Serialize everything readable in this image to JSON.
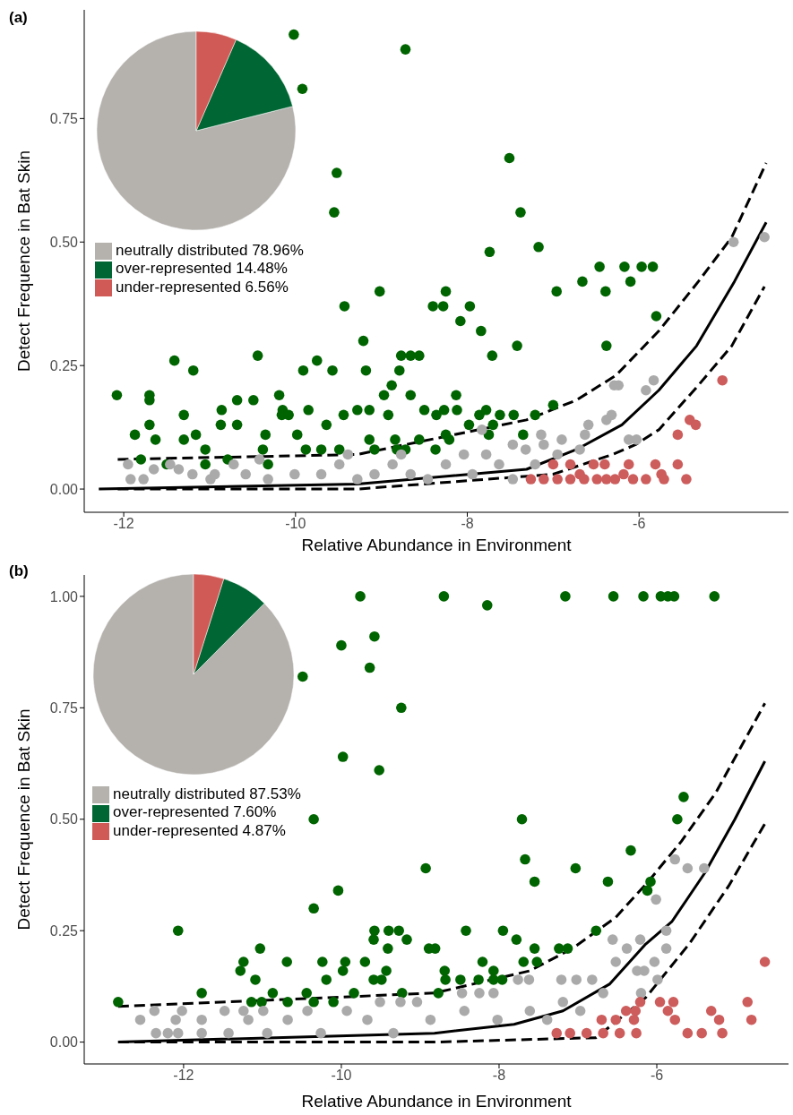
{
  "chart_data": [
    {
      "type": "scatter",
      "title": "(a)",
      "xlabel": "Relative Abundance in Environment",
      "ylabel": "Detect Frequence in Bat Skin",
      "grid": false,
      "xlim": [
        -12.46,
        -4.26
      ],
      "xticks": [
        -12,
        -10,
        -8,
        -6
      ],
      "ylim": [
        -0.047,
        0.97
      ],
      "yticks": [
        {
          "value": 0,
          "label": "0.00"
        },
        {
          "value": 0.25,
          "label": "0.25"
        },
        {
          "value": 0.5,
          "label": "0.50"
        },
        {
          "value": 0.75,
          "label": "0.75"
        }
      ],
      "series": [
        {
          "type": "scatter",
          "color": "#006400",
          "marker": "circle",
          "x": [
            -10.02,
            -8.72,
            -9.92,
            -9.52,
            -9.55,
            -7.51,
            -7.38,
            -7.17,
            -7.74,
            -6.46,
            -6.17,
            -5.97,
            -5.84,
            -6.66,
            -6.96,
            -6.1,
            -6.39,
            -5.8,
            -9.02,
            -8.25,
            -8.4,
            -8.28,
            -7.97,
            -8.08,
            -9.43,
            -9.21,
            -7.84,
            -7.42,
            -7.71,
            -6.38,
            -11.41,
            -11.19,
            -10.44,
            -9.75,
            -9.91,
            -8.66,
            -8.77,
            -8.56,
            -8.79,
            -9.18,
            -9.57,
            -12.08,
            -11.7,
            -11.7,
            -11.7,
            -11.87,
            -11.63,
            -11.3,
            -11.16,
            -11.3,
            -10.86,
            -10.68,
            -10.49,
            -10.87,
            -10.68,
            -10.19,
            -10.15,
            -10.16,
            -10.08,
            -10.35,
            -9.98,
            -10.38,
            -9.64,
            -9.85,
            -9.44,
            -9.28,
            -9.14,
            -8.92,
            -8.97,
            -8.88,
            -8.66,
            -8.5,
            -8.36,
            -8.27,
            -8.13,
            -8.12,
            -7.98,
            -7.86,
            -7.78,
            -7.7,
            -7.62,
            -7.75,
            -7.46,
            -7.35,
            -11.8,
            -11.5,
            -11.05,
            -11.05,
            -10.79,
            -10.32,
            -9.88,
            -9.7,
            -9.49,
            -9.14,
            -9.08,
            -8.84,
            -8.82,
            -8.72,
            -8.56,
            -8.37,
            -8.25,
            -8.21,
            -7.21,
            -7.0
          ],
          "values": [
            0.92,
            0.89,
            0.81,
            0.64,
            0.56,
            0.67,
            0.56,
            0.49,
            0.48,
            0.45,
            0.45,
            0.45,
            0.45,
            0.42,
            0.4,
            0.42,
            0.4,
            0.35,
            0.4,
            0.4,
            0.37,
            0.37,
            0.37,
            0.34,
            0.37,
            0.3,
            0.32,
            0.29,
            0.27,
            0.29,
            0.26,
            0.24,
            0.27,
            0.26,
            0.24,
            0.27,
            0.27,
            0.27,
            0.24,
            0.24,
            0.24,
            0.19,
            0.19,
            0.18,
            0.13,
            0.11,
            0.1,
            0.15,
            0.11,
            0.1,
            0.16,
            0.18,
            0.18,
            0.13,
            0.13,
            0.19,
            0.16,
            0.15,
            0.15,
            0.11,
            0.11,
            0.08,
            0.13,
            0.16,
            0.15,
            0.16,
            0.16,
            0.15,
            0.19,
            0.21,
            0.19,
            0.16,
            0.15,
            0.16,
            0.19,
            0.16,
            0.13,
            0.15,
            0.16,
            0.13,
            0.15,
            0.11,
            0.15,
            0.11,
            0.06,
            0.05,
            0.08,
            0.05,
            0.06,
            0.05,
            0.08,
            0.08,
            0.08,
            0.1,
            0.08,
            0.1,
            0.08,
            0.08,
            0.1,
            0.08,
            0.11,
            0.1,
            0.15,
            0.17
          ]
        },
        {
          "type": "scatter",
          "color": "#aaaaaa",
          "marker": "circle",
          "x": [
            -11.95,
            -11.92,
            -11.77,
            -11.65,
            -11.46,
            -11.36,
            -11.2,
            -10.99,
            -10.94,
            -10.72,
            -10.58,
            -10.32,
            -10.01,
            -9.7,
            -9.49,
            -9.28,
            -9.08,
            -8.87,
            -8.66,
            -8.46,
            -8.25,
            -8.04,
            -7.94,
            -7.78,
            -7.63,
            -7.47,
            -7.32,
            -7.21,
            -7.14,
            -6.95,
            -6.9,
            -6.69,
            -6.63,
            -6.38,
            -6.32,
            -6.24,
            -6.29,
            -6.12,
            -6.03,
            -5.92,
            -5.83,
            -4.9,
            -4.54,
            -7.83,
            -7.47,
            -7.11,
            -6.59,
            -8.77,
            -9.39,
            -10.42
          ],
          "values": [
            0.05,
            0.02,
            0.02,
            0.04,
            0.05,
            0.04,
            0.03,
            0.02,
            0.03,
            0.05,
            0.03,
            0.02,
            0.03,
            0.03,
            0.05,
            0.02,
            0.03,
            0.05,
            0.03,
            0.02,
            0.05,
            0.07,
            0.03,
            0.07,
            0.05,
            0.02,
            0.08,
            0.05,
            0.11,
            0.07,
            0.1,
            0.08,
            0.11,
            0.14,
            0.15,
            0.21,
            0.21,
            0.1,
            0.1,
            0.2,
            0.22,
            0.5,
            0.51,
            0.12,
            0.09,
            0.09,
            0.13,
            0.07,
            0.07,
            0.06
          ]
        },
        {
          "type": "scatter",
          "color": "#cd5c5c",
          "marker": "circle",
          "x": [
            -7.26,
            -7.11,
            -6.95,
            -6.8,
            -6.69,
            -6.64,
            -6.49,
            -6.38,
            -6.28,
            -6.18,
            -6.12,
            -6.07,
            -5.92,
            -5.81,
            -5.74,
            -5.71,
            -5.55,
            -5.45,
            -5.55,
            -5.41,
            -5.34,
            -5.03,
            -7.0,
            -6.8,
            -6.53,
            -6.4
          ],
          "values": [
            0.02,
            0.02,
            0.02,
            0.02,
            0.03,
            0.02,
            0.02,
            0.02,
            0.02,
            0.03,
            0.05,
            0.02,
            0.02,
            0.05,
            0.03,
            0.02,
            0.05,
            0.02,
            0.11,
            0.14,
            0.13,
            0.22,
            0.05,
            0.05,
            0.05,
            0.05
          ]
        },
        {
          "type": "line",
          "color": "#000000",
          "line_style": "solid",
          "x": [
            -12.29,
            -9.28,
            -7.31,
            -6.73,
            -6.2,
            -5.77,
            -5.33,
            -4.89,
            -4.52
          ],
          "values": [
            0,
            0.01,
            0.04,
            0.08,
            0.13,
            0.2,
            0.29,
            0.42,
            0.54
          ]
        },
        {
          "type": "line",
          "color": "#000000",
          "line_style": "dashed",
          "x": [
            -12.07,
            -9.28,
            -7.31,
            -6.73,
            -6.27,
            -5.77,
            -5.31,
            -4.92,
            -4.52
          ],
          "values": [
            0.06,
            0.07,
            0.14,
            0.18,
            0.23,
            0.32,
            0.42,
            0.51,
            0.66
          ]
        },
        {
          "type": "line",
          "color": "#000000",
          "line_style": "dashed",
          "x": [
            -12.07,
            -9.28,
            -7.0,
            -6.31,
            -6.04,
            -5.77,
            -5.31,
            -4.92,
            -4.54
          ],
          "values": [
            0,
            0,
            0.03,
            0.07,
            0.09,
            0.12,
            0.21,
            0.29,
            0.41
          ]
        }
      ]
    },
    {
      "type": "pie",
      "categories": [
        "neutrally distributed 78.96%",
        "over-represented 14.48%",
        "under-represented 6.56%"
      ],
      "values": [
        78.96,
        14.48,
        6.56
      ],
      "colors": [
        "#b5b2ae",
        "#006633",
        "#d05a55"
      ],
      "legend": "bottom"
    },
    {
      "type": "scatter",
      "title": "(b)",
      "xlabel": "Relative Abundance in Environment",
      "ylabel": "Detect Frequence in Bat Skin",
      "grid": false,
      "xlim": [
        -13.26,
        -4.33
      ],
      "xticks": [
        -12,
        -10,
        -8,
        -6
      ],
      "ylim": [
        -0.049,
        1.048
      ],
      "yticks": [
        {
          "value": 0,
          "label": "0.00"
        },
        {
          "value": 0.25,
          "label": "0.25"
        },
        {
          "value": 0.5,
          "label": "0.50"
        },
        {
          "value": 0.75,
          "label": "0.75"
        },
        {
          "value": 1,
          "label": "1.00"
        }
      ],
      "series": [
        {
          "type": "scatter",
          "color": "#006400",
          "marker": "circle",
          "x": [
            -9.76,
            -8.7,
            -7.16,
            -6.55,
            -6.17,
            -5.95,
            -5.86,
            -5.78,
            -5.27,
            -8.15,
            -9.58,
            -10.0,
            -9.64,
            -10.49,
            -9.24,
            -9.98,
            -9.52,
            -10.35,
            -8.93,
            -10.04,
            -10.35,
            -12.07,
            -12.83,
            -11.77,
            -11.24,
            -11.28,
            -11.03,
            -11.09,
            -10.87,
            -10.69,
            -10.44,
            -10.24,
            -10.19,
            -9.95,
            -9.98,
            -9.84,
            -9.7,
            -9.58,
            -9.4,
            -9.27,
            -9.59,
            -9.17,
            -9.41,
            -9.43,
            -9.59,
            -9.49,
            -9.23,
            -8.89,
            -10.35,
            -10.1,
            -10.68,
            -11.14,
            -11.01,
            -8.42,
            -7.95,
            -7.78,
            -8.81,
            -7.55,
            -7.24,
            -7.13,
            -7.69,
            -7.52,
            -8.21,
            -8.69,
            -8.07,
            -8.68,
            -8.49,
            -8.26,
            -8.07,
            -7.96,
            -8.77,
            -6.77,
            -7.71,
            -7.67,
            -7.55,
            -7.03,
            -6.62,
            -6.33,
            -6.08,
            -6.12,
            -5.74,
            -5.66
          ],
          "values": [
            1,
            1,
            1,
            1,
            1,
            1,
            1,
            1,
            1,
            0.98,
            0.91,
            0.89,
            0.84,
            0.82,
            0.75,
            0.64,
            0.61,
            0.5,
            0.39,
            0.34,
            0.3,
            0.25,
            0.09,
            0.11,
            0.18,
            0.16,
            0.21,
            0.14,
            0.11,
            0.18,
            0.11,
            0.18,
            0.14,
            0.18,
            0.16,
            0.11,
            0.18,
            0.25,
            0.25,
            0.25,
            0.23,
            0.23,
            0.21,
            0.16,
            0.14,
            0.14,
            0.11,
            0.21,
            0.09,
            0.09,
            0.09,
            0.09,
            0.09,
            0.25,
            0.25,
            0.23,
            0.21,
            0.21,
            0.21,
            0.21,
            0.18,
            0.18,
            0.18,
            0.16,
            0.16,
            0.14,
            0.14,
            0.14,
            0.14,
            0.14,
            0.11,
            0.25,
            0.5,
            0.41,
            0.36,
            0.39,
            0.36,
            0.43,
            0.36,
            0.34,
            0.5,
            0.55
          ]
        },
        {
          "type": "scatter",
          "color": "#aaaaaa",
          "marker": "circle",
          "x": [
            -12.55,
            -12.35,
            -12.2,
            -12.07,
            -12.37,
            -12.02,
            -12.1,
            -11.77,
            -11.77,
            -11.48,
            -11.24,
            -11.43,
            -11.18,
            -10.99,
            -10.94,
            -10.68,
            -10.43,
            -10.26,
            -9.93,
            -9.67,
            -9.51,
            -9.25,
            -9.04,
            -9.34,
            -8.87,
            -8.47,
            -8.25,
            -8.07,
            -7.76,
            -7.62,
            -7.21,
            -7.02,
            -6.82,
            -6.68,
            -6.56,
            -6.38,
            -6.21,
            -6.52,
            -6.25,
            -6.16,
            -6.03,
            -5.88,
            -5.88,
            -5.99,
            -6.01,
            -5.77,
            -5.61,
            -5.4,
            -6.2,
            -7.19,
            -7.61,
            -8.02,
            -8.44,
            -7.39,
            -6.97
          ],
          "values": [
            0.05,
            0.02,
            0.02,
            0.02,
            0.07,
            0.07,
            0.05,
            0.02,
            0.05,
            0.07,
            0.07,
            0.02,
            0.05,
            0.07,
            0.02,
            0.05,
            0.07,
            0.02,
            0.07,
            0.05,
            0.09,
            0.09,
            0.09,
            0.02,
            0.05,
            0.11,
            0.11,
            0.11,
            0.14,
            0.14,
            0.14,
            0.14,
            0.14,
            0.11,
            0.23,
            0.21,
            0.23,
            0.18,
            0.16,
            0.16,
            0.18,
            0.21,
            0.25,
            0.14,
            0.32,
            0.41,
            0.39,
            0.39,
            0.11,
            0.09,
            0.07,
            0.05,
            0.07,
            0.05,
            0.07
          ]
        },
        {
          "type": "scatter",
          "color": "#cd5c5c",
          "marker": "circle",
          "x": [
            -7.27,
            -7.1,
            -6.89,
            -6.68,
            -6.47,
            -6.26,
            -6.7,
            -6.52,
            -6.29,
            -6.39,
            -6.27,
            -6.21,
            -5.96,
            -5.79,
            -5.86,
            -5.77,
            -5.61,
            -5.43,
            -5.31,
            -5.21,
            -5.17,
            -4.85,
            -4.8,
            -4.63
          ],
          "values": [
            0.02,
            0.02,
            0.02,
            0.02,
            0.02,
            0.02,
            0.05,
            0.05,
            0.05,
            0.07,
            0.07,
            0.09,
            0.09,
            0.09,
            0.07,
            0.05,
            0.02,
            0.02,
            0.07,
            0.05,
            0.02,
            0.09,
            0.05,
            0.18
          ]
        },
        {
          "type": "line",
          "color": "#000000",
          "line_style": "solid",
          "x": [
            -12.83,
            -8.82,
            -7.81,
            -7.19,
            -6.6,
            -6.14,
            -5.81,
            -5.39,
            -5.01,
            -4.63
          ],
          "values": [
            0,
            0.02,
            0.04,
            0.07,
            0.13,
            0.22,
            0.27,
            0.38,
            0.5,
            0.63
          ]
        },
        {
          "type": "line",
          "color": "#000000",
          "line_style": "dashed",
          "x": [
            -12.83,
            -8.82,
            -7.61,
            -7.07,
            -6.52,
            -6.11,
            -5.69,
            -5.25,
            -4.63
          ],
          "values": [
            0.08,
            0.11,
            0.16,
            0.21,
            0.28,
            0.36,
            0.45,
            0.56,
            0.76
          ]
        },
        {
          "type": "line",
          "color": "#000000",
          "line_style": "dashed",
          "x": [
            -12.83,
            -8.82,
            -6.77,
            -6.14,
            -5.59,
            -5.09,
            -4.63
          ],
          "values": [
            0,
            0,
            0.01,
            0.1,
            0.22,
            0.35,
            0.49
          ]
        }
      ]
    },
    {
      "type": "pie",
      "categories": [
        "neutrally distributed 87.53%",
        "over-represented 7.60%",
        "under-represented 4.87%"
      ],
      "values": [
        87.53,
        7.6,
        4.87
      ],
      "colors": [
        "#b5b2ae",
        "#006633",
        "#d05a55"
      ],
      "legend": "bottom"
    }
  ]
}
